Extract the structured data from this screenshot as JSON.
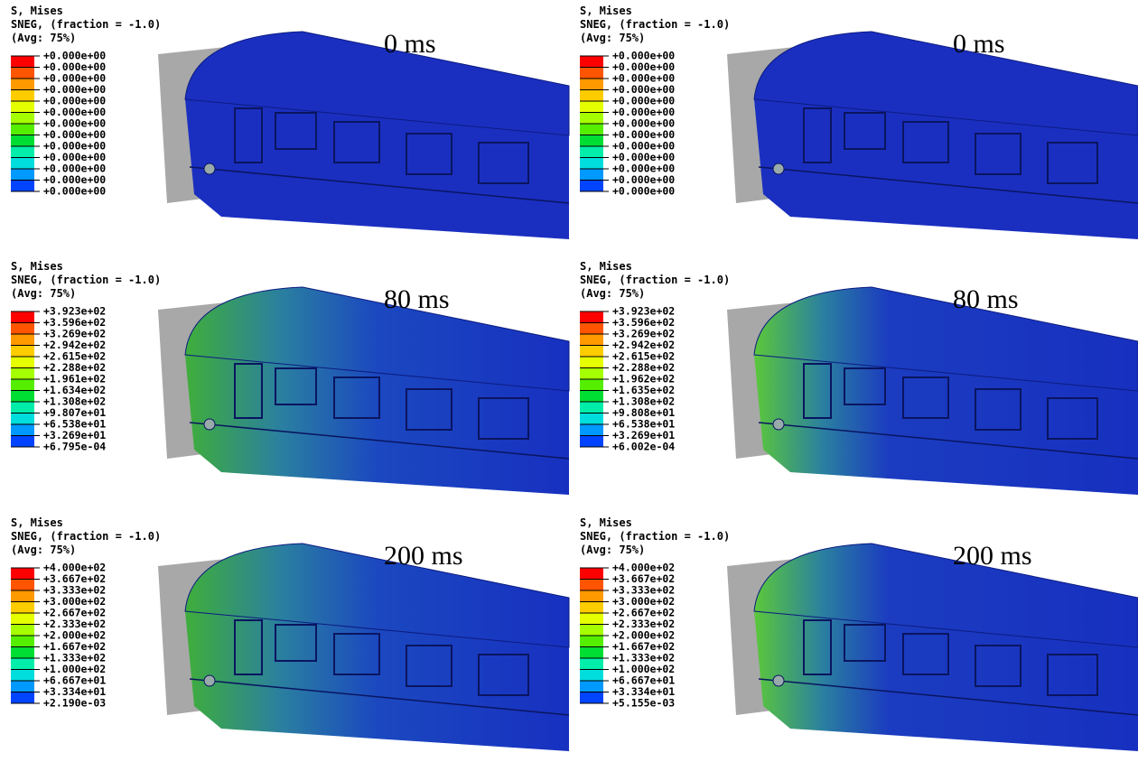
{
  "panels": [
    {
      "header": [
        "S, Mises",
        "SNEG, (fraction = -1.0)",
        "(Avg: 75%)"
      ],
      "time": "0 ms",
      "legend": [
        "+0.000e+00",
        "+0.000e+00",
        "+0.000e+00",
        "+0.000e+00",
        "+0.000e+00",
        "+0.000e+00",
        "+0.000e+00",
        "+0.000e+00",
        "+0.000e+00",
        "+0.000e+00",
        "+0.000e+00",
        "+0.000e+00",
        "+0.000e+00"
      ]
    },
    {
      "header": [
        "S, Mises",
        "SNEG, (fraction = -1.0)",
        "(Avg: 75%)"
      ],
      "time": "0 ms",
      "legend": [
        "+0.000e+00",
        "+0.000e+00",
        "+0.000e+00",
        "+0.000e+00",
        "+0.000e+00",
        "+0.000e+00",
        "+0.000e+00",
        "+0.000e+00",
        "+0.000e+00",
        "+0.000e+00",
        "+0.000e+00",
        "+0.000e+00",
        "+0.000e+00"
      ]
    },
    {
      "header": [
        "S, Mises",
        "SNEG, (fraction = -1.0)",
        "(Avg: 75%)"
      ],
      "time": "80 ms",
      "legend": [
        "+3.923e+02",
        "+3.596e+02",
        "+3.269e+02",
        "+2.942e+02",
        "+2.615e+02",
        "+2.288e+02",
        "+1.961e+02",
        "+1.634e+02",
        "+1.308e+02",
        "+9.807e+01",
        "+6.538e+01",
        "+3.269e+01",
        "+6.795e-04"
      ]
    },
    {
      "header": [
        "S, Mises",
        "SNEG, (fraction = -1.0)",
        "(Avg: 75%)"
      ],
      "time": "80 ms",
      "legend": [
        "+3.923e+02",
        "+3.596e+02",
        "+3.269e+02",
        "+2.942e+02",
        "+2.615e+02",
        "+2.288e+02",
        "+1.962e+02",
        "+1.635e+02",
        "+1.308e+02",
        "+9.808e+01",
        "+6.538e+01",
        "+3.269e+01",
        "+6.002e-04"
      ]
    },
    {
      "header": [
        "S, Mises",
        "SNEG, (fraction = -1.0)",
        "(Avg: 75%)"
      ],
      "time": "200 ms",
      "legend": [
        "+4.000e+02",
        "+3.667e+02",
        "+3.333e+02",
        "+3.000e+02",
        "+2.667e+02",
        "+2.333e+02",
        "+2.000e+02",
        "+1.667e+02",
        "+1.333e+02",
        "+1.000e+02",
        "+6.667e+01",
        "+3.334e+01",
        "+2.190e-03"
      ]
    },
    {
      "header": [
        "S, Mises",
        "SNEG, (fraction = -1.0)",
        "(Avg: 75%)"
      ],
      "time": "200 ms",
      "legend": [
        "+4.000e+02",
        "+3.667e+02",
        "+3.333e+02",
        "+3.000e+02",
        "+2.667e+02",
        "+2.333e+02",
        "+2.000e+02",
        "+1.667e+02",
        "+1.333e+02",
        "+1.000e+02",
        "+6.667e+01",
        "+3.334e+01",
        "+5.155e-03"
      ]
    }
  ]
}
